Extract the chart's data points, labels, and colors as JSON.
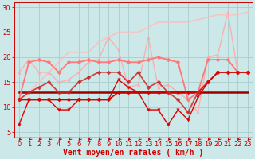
{
  "xlabel": "Vent moyen/en rafales ( km/h )",
  "xlim": [
    -0.5,
    23.5
  ],
  "ylim": [
    4,
    31
  ],
  "yticks": [
    5,
    10,
    15,
    20,
    25,
    30
  ],
  "xticks": [
    0,
    1,
    2,
    3,
    4,
    5,
    6,
    7,
    8,
    9,
    10,
    11,
    12,
    13,
    14,
    15,
    16,
    17,
    18,
    19,
    20,
    21,
    22,
    23
  ],
  "bg_color": "#cce8e8",
  "grid_color": "#aacccc",
  "series": [
    {
      "x": [
        0,
        1,
        2,
        3,
        4,
        5,
        6,
        7,
        8,
        9,
        10,
        11,
        12,
        13,
        14,
        15,
        16,
        17,
        18,
        19,
        20,
        21,
        22,
        23
      ],
      "y": [
        11.5,
        11.5,
        11.5,
        11.5,
        11.5,
        11.5,
        11.5,
        11.5,
        11.5,
        11.5,
        13,
        13,
        13,
        13,
        13,
        13,
        13,
        13,
        13,
        15,
        17,
        17,
        17,
        17
      ],
      "color": "#cc0000",
      "lw": 1.2,
      "marker": "D",
      "ms": 2.5,
      "alpha": 1.0,
      "zorder": 4
    },
    {
      "x": [
        0,
        1,
        2,
        3,
        4,
        5,
        6,
        7,
        8,
        9,
        10,
        11,
        12,
        13,
        14,
        15,
        16,
        17,
        18,
        19,
        20,
        21,
        22,
        23
      ],
      "y": [
        13,
        13,
        13,
        13,
        13,
        13,
        13,
        13,
        13,
        13,
        13,
        13,
        13,
        13,
        13,
        13,
        13,
        13,
        13,
        13,
        13,
        13,
        13,
        13
      ],
      "color": "#990000",
      "lw": 1.8,
      "marker": null,
      "ms": 0,
      "alpha": 1.0,
      "zorder": 3
    },
    {
      "x": [
        0,
        1,
        2,
        3,
        4,
        5,
        6,
        7,
        8,
        9,
        10,
        11,
        12,
        13,
        14,
        15,
        16,
        17,
        18,
        19,
        20,
        21,
        22,
        23
      ],
      "y": [
        6.5,
        11.5,
        11.5,
        11.5,
        9.5,
        9.5,
        11.5,
        11.5,
        11.5,
        11.5,
        15.5,
        14,
        13,
        9.5,
        9.5,
        6.5,
        9.5,
        7.5,
        12,
        15,
        17,
        17,
        17,
        17
      ],
      "color": "#dd0000",
      "lw": 1.0,
      "marker": "v",
      "ms": 2.5,
      "alpha": 1.0,
      "zorder": 5
    },
    {
      "x": [
        0,
        1,
        2,
        3,
        4,
        5,
        6,
        7,
        8,
        9,
        10,
        11,
        12,
        13,
        14,
        15,
        16,
        17,
        18,
        19,
        20,
        21,
        22,
        23
      ],
      "y": [
        11.5,
        19,
        19.5,
        19,
        17,
        19,
        19,
        19.5,
        19,
        19,
        19.5,
        19,
        19,
        19.5,
        20,
        19.5,
        19,
        11.5,
        13,
        19.5,
        19.5,
        19.5,
        17,
        17
      ],
      "color": "#ff7777",
      "lw": 1.3,
      "marker": "D",
      "ms": 2.5,
      "alpha": 1.0,
      "zorder": 3
    },
    {
      "x": [
        0,
        1,
        2,
        3,
        4,
        5,
        6,
        7,
        8,
        9,
        10,
        11,
        12,
        13,
        14,
        15,
        16,
        17,
        18,
        19,
        20,
        21,
        22,
        23
      ],
      "y": [
        17,
        19.5,
        17,
        17,
        15,
        15.5,
        17,
        19,
        19.5,
        24,
        21.5,
        14,
        14.5,
        24,
        14,
        14.5,
        13,
        11.5,
        9,
        20,
        20.5,
        29,
        17,
        17
      ],
      "color": "#ffaaaa",
      "lw": 1.0,
      "marker": "^",
      "ms": 2.5,
      "alpha": 0.9,
      "zorder": 2
    },
    {
      "x": [
        0,
        1,
        2,
        3,
        4,
        5,
        6,
        7,
        8,
        9,
        10,
        11,
        12,
        13,
        14,
        15,
        16,
        17,
        18,
        19,
        20,
        21,
        22,
        23
      ],
      "y": [
        11.5,
        13,
        14,
        15,
        13,
        13,
        15,
        16,
        17,
        17,
        17,
        15,
        17,
        14,
        15,
        13,
        11.5,
        9,
        13,
        15,
        17,
        17,
        17,
        17
      ],
      "color": "#cc2222",
      "lw": 1.2,
      "marker": "D",
      "ms": 2.5,
      "alpha": 0.85,
      "zorder": 4
    },
    {
      "x": [
        0,
        1,
        2,
        3,
        4,
        5,
        6,
        7,
        8,
        9,
        10,
        11,
        12,
        13,
        14,
        15,
        16,
        17,
        18,
        19,
        20,
        21,
        22,
        23
      ],
      "y": [
        11.5,
        13,
        15,
        17,
        19,
        21,
        21,
        21,
        23,
        24,
        25,
        25,
        25,
        26,
        27,
        27,
        27,
        27,
        27.5,
        28,
        28.5,
        28.5,
        28.5,
        29
      ],
      "color": "#ffbbbb",
      "lw": 1.3,
      "marker": null,
      "ms": 0,
      "alpha": 0.75,
      "zorder": 2
    }
  ],
  "arrow_color": "#cc0000",
  "tick_fontsize": 6,
  "xlabel_fontsize": 7,
  "xlabel_color": "#cc0000"
}
